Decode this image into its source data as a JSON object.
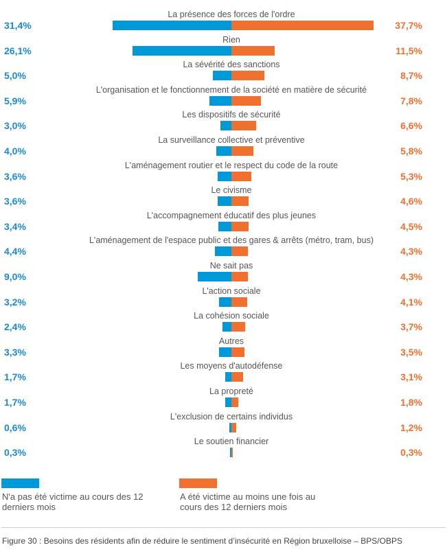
{
  "chart_data": {
    "type": "bar",
    "orientation": "horizontal-diverging",
    "categories": [
      "La présence des forces de l'ordre",
      "Rien",
      "La sévérité des sanctions",
      "L'organisation et le fonctionnement de la société en matière de sécurité",
      "Les dispositifs de sécurité",
      "La surveillance collective et préventive",
      "L'aménagement routier et le respect du code de la route",
      "Le civisme",
      "L'accompagnement éducatif des plus jeunes",
      "L'aménagement de l'espace public et des gares & arrêts (métro, tram, bus)",
      "Ne sait pas",
      "L'action sociale",
      "La cohésion sociale",
      "Autres",
      "Les moyens d'autodéfense",
      "La propreté",
      "L'exclusion de certains individus",
      "Le soutien financier"
    ],
    "series": [
      {
        "name": "N'a pas été victime au cours des 12 derniers mois",
        "color": "#0099d8",
        "values": [
          31.4,
          26.1,
          5.0,
          5.9,
          3.0,
          4.0,
          3.6,
          3.6,
          3.4,
          4.4,
          9.0,
          3.2,
          2.4,
          3.3,
          1.7,
          1.7,
          0.6,
          0.3
        ],
        "labels": [
          "31,4%",
          "26,1%",
          "5,0%",
          "5,9%",
          "3,0%",
          "4,0%",
          "3,6%",
          "3,6%",
          "3,4%",
          "4,4%",
          "9,0%",
          "3,2%",
          "2,4%",
          "3,3%",
          "1,7%",
          "1,7%",
          "0,6%",
          "0,3%"
        ]
      },
      {
        "name": "A été victime au moins une fois au cours des 12 derniers mois",
        "color": "#f07030",
        "values": [
          37.7,
          11.5,
          8.7,
          7.8,
          6.6,
          5.8,
          5.3,
          4.6,
          4.5,
          4.3,
          4.3,
          4.1,
          3.7,
          3.5,
          3.1,
          1.8,
          1.2,
          0.3
        ],
        "labels": [
          "37,7%",
          "11,5%",
          "8,7%",
          "7,8%",
          "6,6%",
          "5,8%",
          "5,3%",
          "4,6%",
          "4,5%",
          "4,3%",
          "4,3%",
          "4,1%",
          "3,7%",
          "3,5%",
          "3,1%",
          "1,8%",
          "1,2%",
          "0,3%"
        ]
      }
    ],
    "legend": {
      "placement": "bottom",
      "left": "N'a pas été victime au cours des 12 derniers mois",
      "right": "A été victime au moins une fois au cours des 12 derniers mois"
    },
    "grid": false
  },
  "caption": "Figure 30 : Besoins des résidents afin de réduire le sentiment d’insécurité en Région bruxelloise – BPS/OBPS"
}
